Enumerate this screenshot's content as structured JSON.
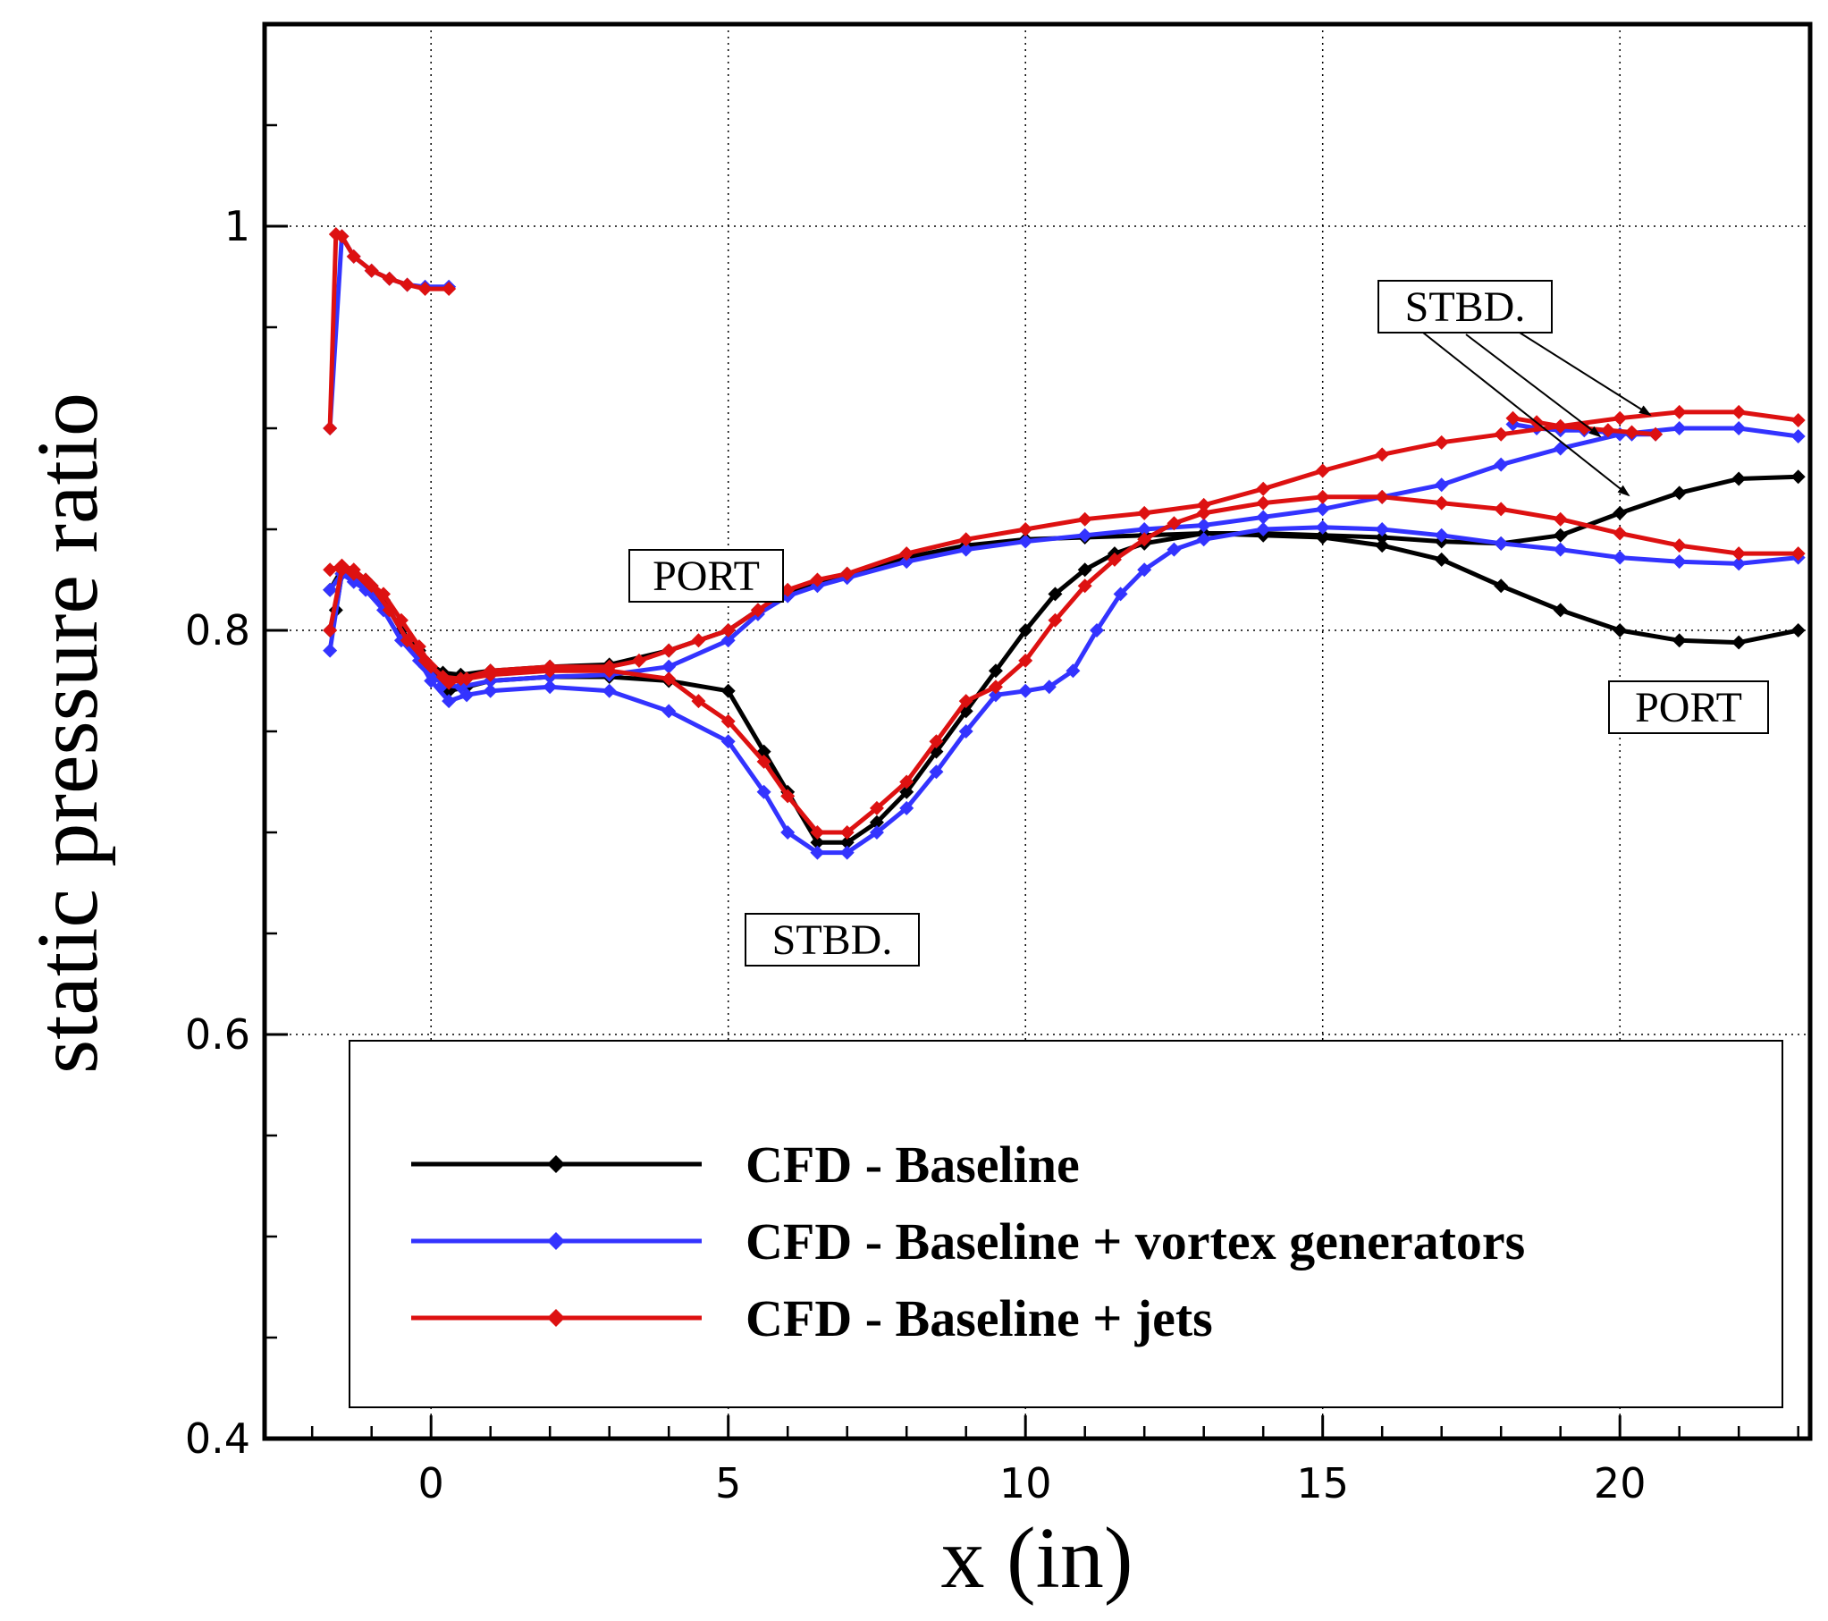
{
  "chart_data": {
    "type": "line",
    "xlabel": "x (in)",
    "ylabel": "static pressure ratio",
    "xlim": [
      -2.8,
      23.2
    ],
    "ylim": [
      0.4,
      1.1
    ],
    "xticks": [
      0,
      5,
      10,
      15,
      20
    ],
    "xtick_labels": [
      "0",
      "5",
      "10",
      "15",
      "20"
    ],
    "yticks": [
      0.4,
      0.6,
      0.8,
      1.0
    ],
    "ytick_labels": [
      "0.4",
      "0.6",
      "0.8",
      "1"
    ],
    "grid": "dotted",
    "legend": {
      "placement": "bottom",
      "entries": [
        "CFD - Baseline",
        "CFD - Baseline + vortex generators",
        "CFD - Baseline + jets"
      ]
    },
    "annotations": [
      {
        "text": "PORT",
        "x": 4.6,
        "y": 0.829
      },
      {
        "text": "STBD.",
        "x": 6.7,
        "y": 0.657
      },
      {
        "text": "STBD.",
        "x": 19.4,
        "y": 0.966
      },
      {
        "text": "PORT",
        "x": 21.0,
        "y": 0.764
      }
    ],
    "series": [
      {
        "name": "CFD - Baseline",
        "color": "#000000",
        "segments": [
          {
            "x": [
              -1.7,
              -1.5,
              -1.3,
              -1.1,
              -0.8,
              -0.5,
              -0.2,
              0.0,
              0.3,
              0.6,
              1.0,
              2.0,
              3.0,
              4.0,
              5.0,
              5.6,
              6.0,
              6.5,
              7.0,
              7.5,
              8.0,
              8.5,
              9.0,
              9.5,
              10.0,
              10.5,
              11.0,
              11.5,
              12.0,
              13.0,
              14.0,
              15.0,
              16.0,
              17.0,
              18.0,
              19.0,
              20.0,
              21.0,
              22.0,
              23.0
            ],
            "y": [
              0.82,
              0.83,
              0.828,
              0.825,
              0.815,
              0.8,
              0.79,
              0.78,
              0.77,
              0.772,
              0.775,
              0.777,
              0.777,
              0.775,
              0.77,
              0.74,
              0.72,
              0.695,
              0.695,
              0.705,
              0.72,
              0.74,
              0.76,
              0.78,
              0.8,
              0.818,
              0.83,
              0.838,
              0.843,
              0.848,
              0.847,
              0.846,
              0.842,
              0.835,
              0.822,
              0.81,
              0.8,
              0.795,
              0.794,
              0.8
            ]
          },
          {
            "x": [
              -1.7,
              -1.6,
              -1.5,
              -1.3,
              -1.0,
              -0.7,
              -0.4,
              -0.1,
              0.2,
              0.5,
              1.0,
              2.0,
              3.0,
              4.0,
              5.0,
              5.5,
              6.0,
              6.5,
              7.0,
              8.0,
              9.0,
              10.0,
              11.0,
              12.0,
              13.0,
              14.0,
              15.0,
              16.0,
              17.0,
              18.0,
              19.0,
              20.0,
              21.0,
              22.0,
              23.0
            ],
            "y": [
              0.8,
              0.81,
              0.828,
              0.826,
              0.822,
              0.81,
              0.795,
              0.785,
              0.779,
              0.778,
              0.78,
              0.782,
              0.783,
              0.79,
              0.8,
              0.81,
              0.818,
              0.823,
              0.828,
              0.836,
              0.842,
              0.845,
              0.846,
              0.847,
              0.848,
              0.848,
              0.847,
              0.846,
              0.844,
              0.843,
              0.847,
              0.858,
              0.868,
              0.875,
              0.876
            ]
          }
        ]
      },
      {
        "name": "CFD - Baseline + vortex generators",
        "color": "#3333ff",
        "segments": [
          {
            "x": [
              -1.7,
              -1.5,
              -1.3,
              -1.1,
              -0.8,
              -0.5,
              -0.2,
              0.0,
              0.3,
              0.6,
              1.0,
              2.0,
              3.0,
              4.0,
              5.0,
              5.6,
              6.0,
              6.5,
              7.0,
              7.5,
              8.0,
              8.5,
              9.0,
              9.5,
              10.0,
              10.4,
              10.8,
              11.2,
              11.6,
              12.0,
              12.5,
              13.0,
              14.0,
              15.0,
              16.0,
              17.0,
              18.0,
              19.0,
              20.0,
              21.0,
              22.0,
              23.0
            ],
            "y": [
              0.79,
              0.828,
              0.824,
              0.82,
              0.81,
              0.795,
              0.785,
              0.775,
              0.765,
              0.768,
              0.77,
              0.772,
              0.77,
              0.76,
              0.745,
              0.72,
              0.7,
              0.69,
              0.69,
              0.7,
              0.712,
              0.73,
              0.75,
              0.768,
              0.77,
              0.772,
              0.78,
              0.8,
              0.818,
              0.83,
              0.84,
              0.845,
              0.85,
              0.851,
              0.85,
              0.847,
              0.843,
              0.84,
              0.836,
              0.834,
              0.833,
              0.836
            ]
          },
          {
            "x": [
              -1.7,
              -1.5,
              -1.3,
              -1.0,
              -0.7,
              -0.4,
              -0.1,
              0.2,
              0.5,
              1.0,
              2.0,
              3.0,
              4.0,
              5.0,
              5.5,
              6.0,
              6.5,
              7.0,
              8.0,
              9.0,
              10.0,
              11.0,
              12.0,
              13.0,
              14.0,
              15.0,
              16.0,
              17.0,
              18.0,
              19.0,
              20.0,
              21.0,
              22.0,
              23.0
            ],
            "y": [
              0.82,
              0.828,
              0.826,
              0.82,
              0.81,
              0.795,
              0.782,
              0.773,
              0.772,
              0.775,
              0.777,
              0.778,
              0.782,
              0.795,
              0.808,
              0.817,
              0.822,
              0.826,
              0.834,
              0.84,
              0.844,
              0.847,
              0.85,
              0.852,
              0.856,
              0.86,
              0.866,
              0.872,
              0.882,
              0.89,
              0.897,
              0.9,
              0.9,
              0.896
            ]
          },
          {
            "x": [
              -1.7,
              -1.5,
              -1.3,
              -1.0,
              -0.7,
              -0.4,
              -0.1,
              0.3
            ],
            "y": [
              0.9,
              0.995,
              0.985,
              0.978,
              0.974,
              0.971,
              0.97,
              0.97
            ]
          },
          {
            "x": [
              18.2,
              18.6,
              19.0,
              19.4,
              19.8,
              20.2,
              20.6
            ],
            "y": [
              0.902,
              0.9,
              0.899,
              0.899,
              0.898,
              0.897,
              0.897
            ]
          }
        ]
      },
      {
        "name": "CFD - Baseline + jets",
        "color": "#dd1111",
        "segments": [
          {
            "x": [
              -1.7,
              -1.5,
              -1.3,
              -1.1,
              -0.8,
              -0.5,
              -0.2,
              0.0,
              0.3,
              0.6,
              1.0,
              2.0,
              3.0,
              4.0,
              4.5,
              5.0,
              5.6,
              6.0,
              6.5,
              7.0,
              7.5,
              8.0,
              8.5,
              9.0,
              9.5,
              10.0,
              10.5,
              11.0,
              11.5,
              12.0,
              12.5,
              13.0,
              14.0,
              15.0,
              16.0,
              17.0,
              18.0,
              19.0,
              20.0,
              21.0,
              22.0,
              23.0
            ],
            "y": [
              0.83,
              0.832,
              0.83,
              0.825,
              0.818,
              0.805,
              0.792,
              0.782,
              0.774,
              0.776,
              0.778,
              0.78,
              0.78,
              0.776,
              0.765,
              0.755,
              0.735,
              0.718,
              0.7,
              0.7,
              0.712,
              0.725,
              0.745,
              0.765,
              0.772,
              0.785,
              0.805,
              0.822,
              0.835,
              0.845,
              0.853,
              0.858,
              0.863,
              0.866,
              0.866,
              0.863,
              0.86,
              0.855,
              0.848,
              0.842,
              0.838,
              0.838
            ]
          },
          {
            "x": [
              -1.7,
              -1.5,
              -1.3,
              -1.0,
              -0.7,
              -0.4,
              -0.1,
              0.2,
              0.5,
              1.0,
              2.0,
              3.0,
              3.5,
              4.0,
              4.5,
              5.0,
              5.5,
              6.0,
              6.5,
              7.0,
              8.0,
              9.0,
              10.0,
              11.0,
              12.0,
              13.0,
              14.0,
              15.0,
              16.0,
              17.0,
              18.0,
              19.0,
              20.0,
              21.0,
              22.0,
              23.0
            ],
            "y": [
              0.8,
              0.83,
              0.828,
              0.822,
              0.81,
              0.795,
              0.785,
              0.777,
              0.776,
              0.78,
              0.782,
              0.782,
              0.785,
              0.79,
              0.795,
              0.8,
              0.81,
              0.82,
              0.825,
              0.828,
              0.838,
              0.845,
              0.85,
              0.855,
              0.858,
              0.862,
              0.87,
              0.879,
              0.887,
              0.893,
              0.897,
              0.901,
              0.905,
              0.908,
              0.908,
              0.904
            ]
          },
          {
            "x": [
              -1.7,
              -1.6,
              -1.5,
              -1.3,
              -1.0,
              -0.7,
              -0.4,
              -0.1,
              0.3
            ],
            "y": [
              0.9,
              0.996,
              0.995,
              0.985,
              0.978,
              0.974,
              0.971,
              0.969,
              0.969
            ]
          },
          {
            "x": [
              18.2,
              18.6,
              19.0,
              19.4,
              19.8,
              20.2,
              20.6
            ],
            "y": [
              0.905,
              0.903,
              0.901,
              0.9,
              0.899,
              0.898,
              0.897
            ]
          }
        ]
      }
    ]
  }
}
